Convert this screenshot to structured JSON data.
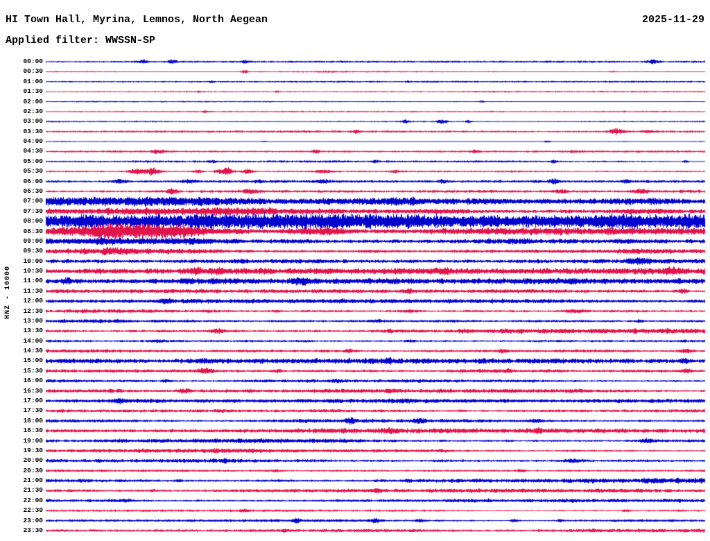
{
  "header": {
    "title": "HI Town Hall, Myrina, Lemnos, North Aegean",
    "date": "2025-11-29",
    "filter_label": "Applied filter: WWSSN-SP"
  },
  "y_axis_label": "HNZ - 10000",
  "chart_data": {
    "type": "line",
    "kind": "helicorder-seismogram",
    "title": "HI Town Hall, Myrina, Lemnos, North Aegean",
    "date": "2025-11-29",
    "filter": "WWSSN-SP",
    "channel_scale": "HNZ - 10000",
    "minutes_per_row": 30,
    "rows_total": 48,
    "time_range": [
      "00:00",
      "23:30"
    ],
    "colors": {
      "blue": "#0000cc",
      "red": "#e0134b"
    },
    "amp_units": "approximate envelope half-amplitude in screen pixels",
    "bursts_format": "[position_fraction_of_row, extra_amplitude_px, gaussian_width_fraction]",
    "rows": [
      {
        "time": "00:00",
        "color": "blue",
        "amp": 0.7,
        "bursts": [
          [
            0.145,
            2.2,
            0.008
          ],
          [
            0.19,
            1.8,
            0.006
          ],
          [
            0.3,
            1.0,
            0.004
          ],
          [
            0.92,
            1.8,
            0.008
          ]
        ]
      },
      {
        "time": "00:30",
        "color": "red",
        "amp": 0.7,
        "bursts": [
          [
            0.3,
            2.2,
            0.005
          ],
          [
            0.86,
            0.9,
            0.004
          ]
        ]
      },
      {
        "time": "01:00",
        "color": "blue",
        "amp": 0.6,
        "bursts": [
          [
            0.25,
            0.9,
            0.004
          ],
          [
            0.55,
            0.7,
            0.004
          ]
        ]
      },
      {
        "time": "01:30",
        "color": "red",
        "amp": 0.55,
        "bursts": [
          [
            0.23,
            0.7,
            0.004
          ],
          [
            0.35,
            0.7,
            0.004
          ]
        ]
      },
      {
        "time": "02:00",
        "color": "blue",
        "amp": 0.55,
        "bursts": [
          [
            0.66,
            1.1,
            0.004
          ]
        ]
      },
      {
        "time": "02:30",
        "color": "red",
        "amp": 0.55,
        "bursts": [
          [
            0.24,
            1.0,
            0.004
          ]
        ]
      },
      {
        "time": "03:00",
        "color": "blue",
        "amp": 0.7,
        "bursts": [
          [
            0.545,
            1.6,
            0.006
          ],
          [
            0.6,
            2.0,
            0.008
          ],
          [
            0.64,
            1.4,
            0.005
          ]
        ]
      },
      {
        "time": "03:30",
        "color": "red",
        "amp": 0.8,
        "bursts": [
          [
            0.47,
            1.8,
            0.006
          ],
          [
            0.865,
            2.6,
            0.012
          ],
          [
            0.91,
            1.8,
            0.006
          ]
        ]
      },
      {
        "time": "04:00",
        "color": "blue",
        "amp": 0.6,
        "bursts": [
          [
            0.33,
            0.9,
            0.004
          ],
          [
            0.76,
            1.1,
            0.005
          ]
        ]
      },
      {
        "time": "04:30",
        "color": "red",
        "amp": 0.9,
        "bursts": [
          [
            0.17,
            2.0,
            0.01
          ],
          [
            0.41,
            1.8,
            0.006
          ],
          [
            0.65,
            1.6,
            0.006
          ],
          [
            0.8,
            1.1,
            0.005
          ]
        ]
      },
      {
        "time": "05:00",
        "color": "blue",
        "amp": 0.8,
        "bursts": [
          [
            0.25,
            1.4,
            0.005
          ],
          [
            0.5,
            1.1,
            0.005
          ],
          [
            0.77,
            1.4,
            0.005
          ],
          [
            0.97,
            1.4,
            0.005
          ]
        ]
      },
      {
        "time": "05:30",
        "color": "red",
        "amp": 1.0,
        "bursts": [
          [
            0.135,
            3.2,
            0.01
          ],
          [
            0.16,
            3.6,
            0.012
          ],
          [
            0.23,
            2.2,
            0.008
          ],
          [
            0.27,
            4.2,
            0.012
          ],
          [
            0.305,
            2.6,
            0.008
          ],
          [
            0.42,
            1.8,
            0.01
          ],
          [
            0.53,
            1.4,
            0.006
          ]
        ]
      },
      {
        "time": "06:00",
        "color": "blue",
        "amp": 1.1,
        "bursts": [
          [
            0.11,
            2.2,
            0.01
          ],
          [
            0.215,
            1.8,
            0.008
          ],
          [
            0.32,
            1.6,
            0.006
          ],
          [
            0.42,
            1.8,
            0.01
          ],
          [
            0.6,
            1.6,
            0.006
          ],
          [
            0.77,
            1.8,
            0.006
          ],
          [
            0.88,
            1.6,
            0.006
          ]
        ]
      },
      {
        "time": "06:30",
        "color": "red",
        "amp": 1.1,
        "bursts": [
          [
            0.19,
            2.2,
            0.008
          ],
          [
            0.31,
            1.8,
            0.01
          ],
          [
            0.78,
            1.8,
            0.01
          ],
          [
            0.9,
            2.2,
            0.012
          ]
        ]
      },
      {
        "time": "07:00",
        "color": "blue",
        "amp": 4.5,
        "bursts": [
          [
            0.5,
            1.0,
            0.3
          ]
        ]
      },
      {
        "time": "07:30",
        "color": "red",
        "amp": 3.0,
        "bursts": [
          [
            0.6,
            1.4,
            0.05
          ],
          [
            0.9,
            1.4,
            0.05
          ]
        ]
      },
      {
        "time": "08:00",
        "color": "blue",
        "amp": 5.5,
        "bursts": [
          [
            0.05,
            2.0,
            0.05
          ],
          [
            0.5,
            1.5,
            0.3
          ]
        ]
      },
      {
        "time": "08:30",
        "color": "red",
        "amp": 4.0,
        "bursts": [
          [
            0.08,
            2.8,
            0.04
          ],
          [
            0.13,
            3.2,
            0.05
          ],
          [
            0.19,
            2.8,
            0.04
          ],
          [
            0.42,
            1.8,
            0.05
          ]
        ]
      },
      {
        "time": "09:00",
        "color": "blue",
        "amp": 3.5,
        "bursts": [
          [
            0.1,
            1.8,
            0.05
          ],
          [
            0.2,
            1.4,
            0.05
          ]
        ]
      },
      {
        "time": "09:30",
        "color": "red",
        "amp": 2.2,
        "bursts": [
          [
            0.1,
            1.4,
            0.03
          ],
          [
            0.9,
            1.4,
            0.03
          ]
        ]
      },
      {
        "time": "10:00",
        "color": "blue",
        "amp": 2.0,
        "bursts": [
          [
            0.3,
            1.0,
            0.01
          ],
          [
            0.9,
            1.4,
            0.02
          ]
        ]
      },
      {
        "time": "10:30",
        "color": "red",
        "amp": 2.2,
        "bursts": [
          [
            0.225,
            2.8,
            0.012
          ],
          [
            0.26,
            2.4,
            0.01
          ],
          [
            0.6,
            1.8,
            0.01
          ],
          [
            0.95,
            1.8,
            0.015
          ]
        ]
      },
      {
        "time": "11:00",
        "color": "blue",
        "amp": 2.2,
        "bursts": [
          [
            0.03,
            2.8,
            0.006
          ],
          [
            0.21,
            1.8,
            0.008
          ],
          [
            0.385,
            2.4,
            0.012
          ],
          [
            0.8,
            1.4,
            0.006
          ]
        ]
      },
      {
        "time": "11:30",
        "color": "red",
        "amp": 2.0,
        "bursts": [
          [
            0.55,
            1.4,
            0.01
          ],
          [
            0.965,
            2.2,
            0.008
          ]
        ]
      },
      {
        "time": "12:00",
        "color": "blue",
        "amp": 1.6,
        "bursts": [
          [
            0.18,
            1.4,
            0.01
          ],
          [
            0.45,
            1.0,
            0.006
          ]
        ]
      },
      {
        "time": "12:30",
        "color": "red",
        "amp": 1.7,
        "bursts": [
          [
            0.35,
            1.1,
            0.006
          ],
          [
            0.55,
            1.4,
            0.015
          ],
          [
            0.8,
            1.4,
            0.02
          ]
        ]
      },
      {
        "time": "13:00",
        "color": "blue",
        "amp": 1.6,
        "bursts": [
          [
            0.5,
            1.4,
            0.01
          ],
          [
            0.9,
            1.1,
            0.006
          ]
        ]
      },
      {
        "time": "13:30",
        "color": "red",
        "amp": 1.8,
        "bursts": [
          [
            0.26,
            1.8,
            0.01
          ],
          [
            0.52,
            1.4,
            0.006
          ],
          [
            0.63,
            1.4,
            0.006
          ]
        ]
      },
      {
        "time": "14:00",
        "color": "blue",
        "amp": 1.6,
        "bursts": [
          [
            0.17,
            1.4,
            0.01
          ],
          [
            0.55,
            1.1,
            0.006
          ]
        ]
      },
      {
        "time": "14:30",
        "color": "red",
        "amp": 1.9,
        "bursts": [
          [
            0.46,
            1.8,
            0.01
          ],
          [
            0.69,
            1.4,
            0.006
          ],
          [
            0.97,
            1.8,
            0.01
          ]
        ]
      },
      {
        "time": "15:00",
        "color": "blue",
        "amp": 2.0,
        "bursts": [
          [
            0.24,
            1.4,
            0.006
          ],
          [
            0.52,
            1.4,
            0.006
          ],
          [
            0.97,
            1.8,
            0.008
          ]
        ]
      },
      {
        "time": "15:30",
        "color": "red",
        "amp": 2.0,
        "bursts": [
          [
            0.24,
            1.8,
            0.012
          ],
          [
            0.35,
            1.6,
            0.008
          ],
          [
            0.7,
            1.4,
            0.006
          ],
          [
            0.97,
            1.8,
            0.008
          ]
        ]
      },
      {
        "time": "16:00",
        "color": "blue",
        "amp": 1.8,
        "bursts": [
          [
            0.18,
            1.4,
            0.006
          ],
          [
            0.44,
            1.1,
            0.006
          ]
        ]
      },
      {
        "time": "16:30",
        "color": "red",
        "amp": 1.8,
        "bursts": [
          [
            0.21,
            1.8,
            0.01
          ],
          [
            0.52,
            1.1,
            0.006
          ]
        ]
      },
      {
        "time": "17:00",
        "color": "blue",
        "amp": 1.8,
        "bursts": [
          [
            0.11,
            1.6,
            0.01
          ],
          [
            0.55,
            1.1,
            0.006
          ]
        ]
      },
      {
        "time": "17:30",
        "color": "red",
        "amp": 1.6,
        "bursts": [
          [
            0.26,
            1.1,
            0.006
          ],
          [
            0.63,
            0.9,
            0.006
          ]
        ]
      },
      {
        "time": "18:00",
        "color": "blue",
        "amp": 1.8,
        "bursts": [
          [
            0.46,
            2.2,
            0.008
          ],
          [
            0.565,
            2.2,
            0.008
          ],
          [
            0.74,
            1.8,
            0.008
          ]
        ]
      },
      {
        "time": "18:30",
        "color": "red",
        "amp": 1.8,
        "bursts": [
          [
            0.52,
            1.4,
            0.006
          ],
          [
            0.745,
            2.8,
            0.006
          ]
        ]
      },
      {
        "time": "19:00",
        "color": "blue",
        "amp": 1.8,
        "bursts": [
          [
            0.45,
            1.4,
            0.006
          ],
          [
            0.91,
            1.4,
            0.01
          ]
        ]
      },
      {
        "time": "19:30",
        "color": "red",
        "amp": 1.5,
        "bursts": [
          [
            0.26,
            1.1,
            0.006
          ],
          [
            0.6,
            0.9,
            0.006
          ]
        ]
      },
      {
        "time": "20:00",
        "color": "blue",
        "amp": 2.0,
        "bursts": [
          [
            0.27,
            1.4,
            0.006
          ],
          [
            0.8,
            1.4,
            0.02
          ]
        ]
      },
      {
        "time": "20:30",
        "color": "red",
        "amp": 1.5,
        "bursts": [
          [
            0.35,
            0.9,
            0.006
          ],
          [
            0.72,
            1.1,
            0.006
          ]
        ]
      },
      {
        "time": "21:00",
        "color": "blue",
        "amp": 2.0,
        "bursts": [
          [
            0.2,
            1.1,
            0.006
          ],
          [
            0.55,
            1.1,
            0.006
          ]
        ]
      },
      {
        "time": "21:30",
        "color": "red",
        "amp": 1.4,
        "bursts": [
          [
            0.16,
            0.9,
            0.006
          ],
          [
            0.5,
            0.9,
            0.006
          ]
        ]
      },
      {
        "time": "22:00",
        "color": "blue",
        "amp": 1.7,
        "bursts": [
          [
            0.12,
            1.4,
            0.01
          ],
          [
            0.67,
            1.1,
            0.006
          ]
        ]
      },
      {
        "time": "22:30",
        "color": "red",
        "amp": 1.2,
        "bursts": [
          [
            0.3,
            0.9,
            0.006
          ],
          [
            0.88,
            0.9,
            0.006
          ]
        ]
      },
      {
        "time": "23:00",
        "color": "blue",
        "amp": 1.2,
        "bursts": [
          [
            0.38,
            1.8,
            0.006
          ],
          [
            0.5,
            2.2,
            0.008
          ],
          [
            0.565,
            1.8,
            0.006
          ],
          [
            0.71,
            1.6,
            0.006
          ],
          [
            0.78,
            1.4,
            0.006
          ]
        ]
      },
      {
        "time": "23:30",
        "color": "red",
        "amp": 1.2,
        "bursts": [
          [
            0.36,
            1.1,
            0.006
          ],
          [
            0.83,
            0.9,
            0.006
          ]
        ]
      }
    ]
  }
}
